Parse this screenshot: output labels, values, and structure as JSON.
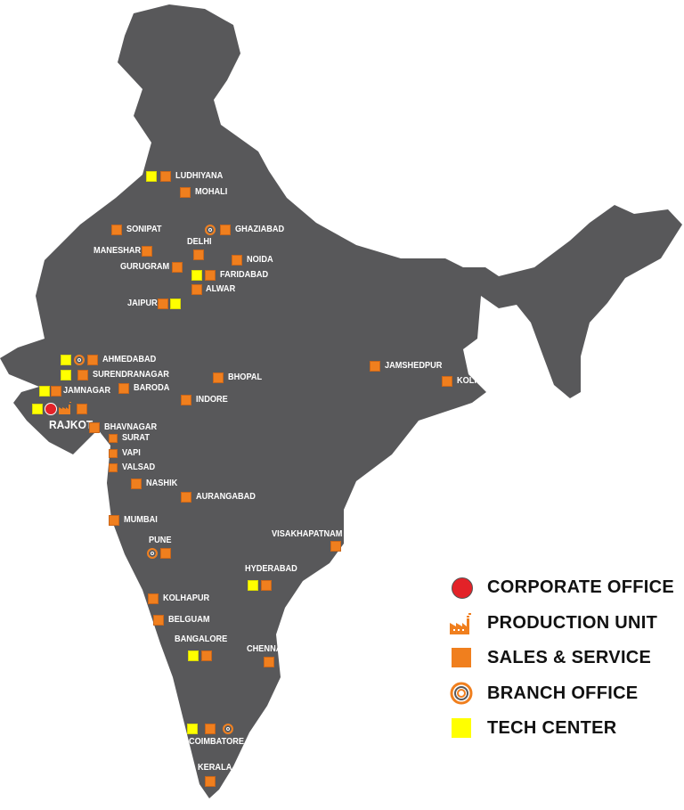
{
  "colors": {
    "land": "#58585a",
    "sales": "#f07f1e",
    "tech": "#ffff00",
    "corporate": "#e32228"
  },
  "cities": {
    "ludhiyana": "LUDHIYANA",
    "mohali": "MOHALI",
    "sonipat": "SONIPAT",
    "ghaziabad": "GHAZIABAD",
    "delhi": "DELHI",
    "maneshar": "MANESHAR",
    "noida": "NOIDA",
    "gurugram": "GURUGRAM",
    "faridabad": "FARIDABAD",
    "alwar": "ALWAR",
    "jaipur": "JAIPUR",
    "ahmedabad": "AHMEDABAD",
    "surendranagar": "SURENDRANAGAR",
    "jamnagar": "JAMNAGAR",
    "baroda": "BARODA",
    "bhopal": "BHOPAL",
    "indore": "INDORE",
    "rajkot": "RAJKOT",
    "bhavnagar": "BHAVNAGAR",
    "surat": "SURAT",
    "vapi": "VAPI",
    "valsad": "VALSAD",
    "nashik": "NASHIK",
    "aurangabad": "AURANGABAD",
    "mumbai": "MUMBAI",
    "pune": "PUNE",
    "visakhapatnam": "VISAKHAPATNAM",
    "hyderabad": "HYDERABAD",
    "kolhapur": "KOLHAPUR",
    "belguam": "BELGUAM",
    "bangalore": "BANGALORE",
    "chennai": "CHENNAI",
    "coimbatore": "COIMBATORE",
    "kerala": "KERALA",
    "jamshedpur": "JAMSHEDPUR",
    "kolkata": "KOLKATA"
  },
  "legend": [
    {
      "icon": "corporate-office-icon",
      "label": "CORPORATE OFFICE"
    },
    {
      "icon": "factory-icon",
      "label": "PRODUCTION UNIT"
    },
    {
      "icon": "orange-square-icon",
      "label": "SALES & SERVICE"
    },
    {
      "icon": "concentric-circle-icon",
      "label": "BRANCH OFFICE"
    },
    {
      "icon": "yellow-square-icon",
      "label": "TECH CENTER"
    }
  ]
}
